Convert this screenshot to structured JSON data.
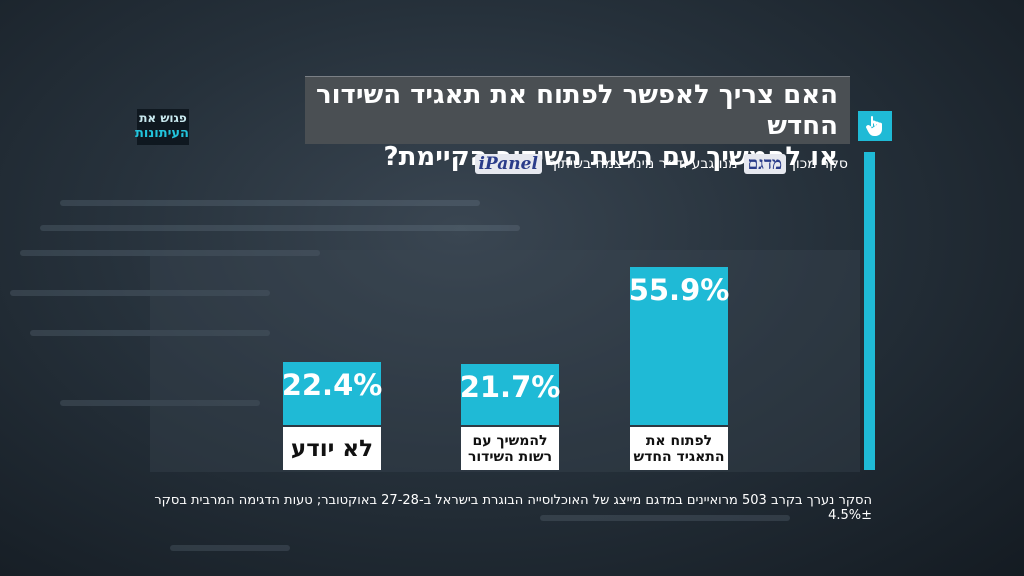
{
  "logo": {
    "line1": "פגוש את",
    "line2": "העיתונות"
  },
  "title": {
    "line1": "האם צריך לאפשר לפתוח את תאגיד השידור החדש",
    "line2": "או להמשיך עם רשות השידור הקיימת?"
  },
  "source": {
    "text_before": "סקר מכון",
    "text_after": "מנו גבע וד״ר מינה צמח בשיתוף",
    "logo1_name": "מדגם",
    "logo2_name": "iPanel"
  },
  "icons": {
    "title_icon": "pointing-hand-icon"
  },
  "colors": {
    "accent": "#1fbad6",
    "title_bg": "#4a4f53"
  },
  "chart_data": {
    "type": "bar",
    "categories": [
      "לפתוח את התאגיד החדש",
      "להמשיך עם רשות השידור",
      "לא יודע"
    ],
    "values": [
      55.9,
      21.7,
      22.4
    ],
    "value_labels": [
      "55.9%",
      "21.7%",
      "22.4%"
    ],
    "ylim": [
      0,
      100
    ]
  },
  "footnote": "הסקר נערך בקרב 503 מרואיינים במדגם מייצג של האוכלוסייה הבוגרת בישראל ב-27-28 באוקטובר; טעות הדגימה המרבית בסקר 4.5%±"
}
